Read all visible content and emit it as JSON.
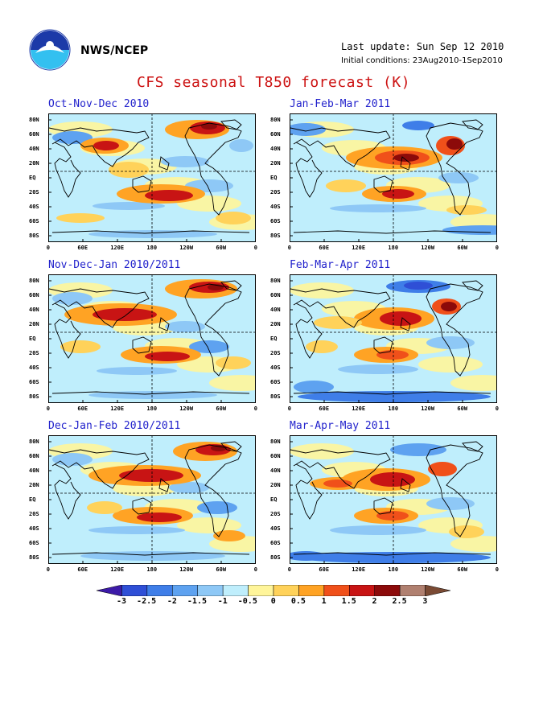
{
  "header": {
    "org": "NWS/NCEP",
    "last_update": "Last update: Sun Sep 12 2010",
    "initial_conditions": "Initial conditions: 23Aug2010-1Sep2010",
    "title": "CFS seasonal T850 forecast (K)"
  },
  "panels": [
    {
      "title": "Oct-Nov-Dec 2010"
    },
    {
      "title": "Jan-Feb-Mar 2011"
    },
    {
      "title": "Nov-Dec-Jan 2010/2011"
    },
    {
      "title": "Feb-Mar-Apr 2011"
    },
    {
      "title": "Dec-Jan-Feb 2010/2011"
    },
    {
      "title": "Mar-Apr-May 2011"
    }
  ],
  "lat_labels": [
    "80N",
    "60N",
    "40N",
    "20N",
    "EQ",
    "20S",
    "40S",
    "60S",
    "80S"
  ],
  "lon_labels": [
    "0",
    "60E",
    "120E",
    "180",
    "120W",
    "60W",
    "0"
  ],
  "colorbar": {
    "labels": [
      "-3",
      "-2.5",
      "-2",
      "-1.5",
      "-1",
      "-0.5",
      "0",
      "0.5",
      "1",
      "1.5",
      "2",
      "2.5",
      "3"
    ],
    "colors": [
      "#3c1aa8",
      "#2f4fd6",
      "#3f7ee8",
      "#5ea2f0",
      "#8ec8f6",
      "#bfeefc",
      "#fff59a",
      "#ffd25a",
      "#ffa324",
      "#f0501a",
      "#c81414",
      "#8c0a0a",
      "#b08070",
      "#7a4a34"
    ]
  }
}
